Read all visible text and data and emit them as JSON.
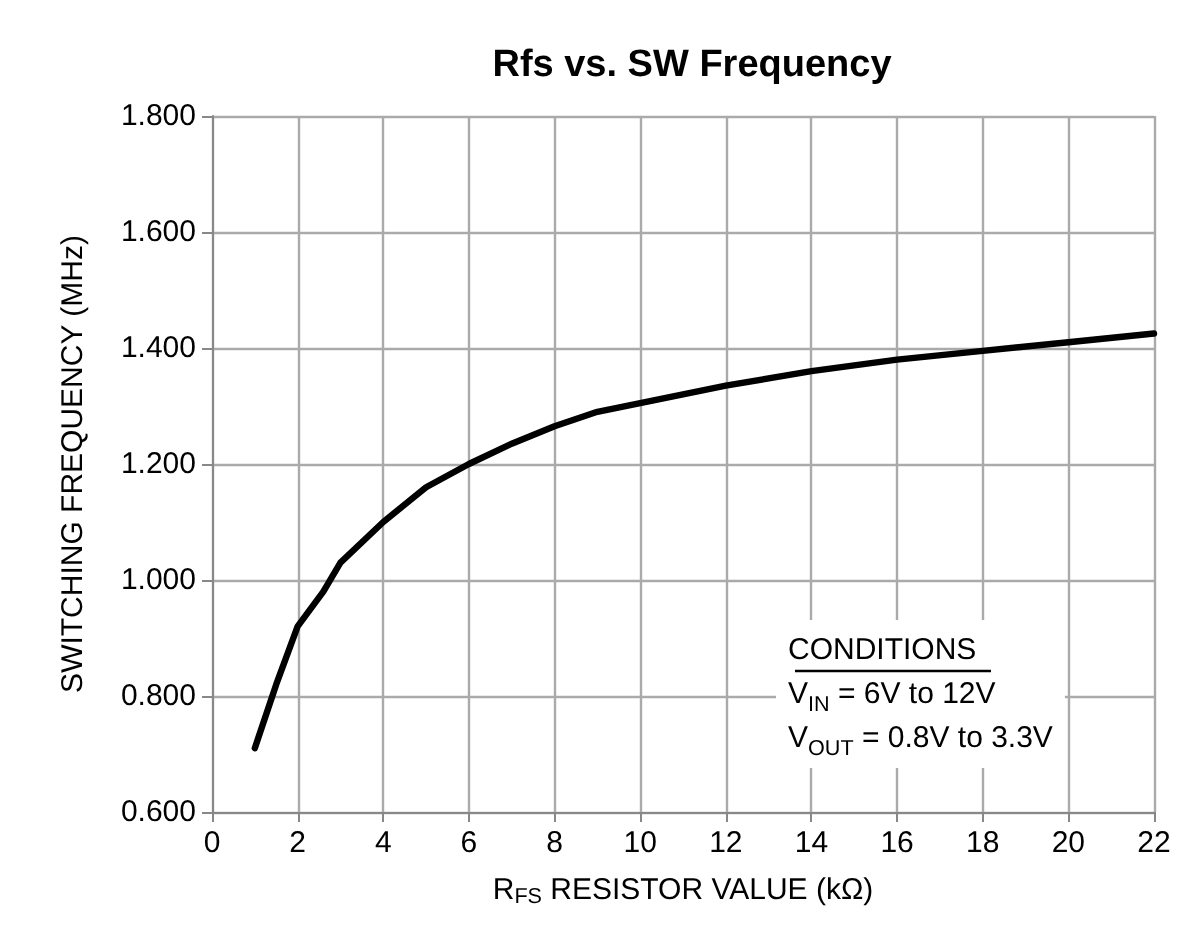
{
  "chart_data": {
    "type": "line",
    "title": "Rfs vs. SW Frequency",
    "xlabel": "R$_{FS}$ RESISTOR VALUE (kΩ)",
    "ylabel": "SWITCHING FREQUENCY (MHz)",
    "x": [
      1,
      1.5,
      2,
      2.6,
      3,
      4,
      5,
      6,
      7,
      8,
      9,
      10,
      12,
      14,
      16,
      18,
      20,
      22
    ],
    "series": [
      {
        "color": "#000000",
        "values": [
          0.71,
          0.82,
          0.92,
          0.98,
          1.03,
          1.1,
          1.16,
          1.2,
          1.235,
          1.265,
          1.29,
          1.305,
          1.335,
          1.36,
          1.38,
          1.395,
          1.41,
          1.425
        ]
      }
    ],
    "xlim": [
      0,
      22
    ],
    "xticks": [
      0,
      2,
      4,
      6,
      8,
      10,
      12,
      14,
      16,
      18,
      20,
      22
    ],
    "ylim": [
      0.6,
      1.8
    ],
    "yticks": [
      {
        "value": 0.6,
        "label": "0.600"
      },
      {
        "value": 0.8,
        "label": "0.800"
      },
      {
        "value": 1.0,
        "label": "1.000"
      },
      {
        "value": 1.2,
        "label": "1.200"
      },
      {
        "value": 1.4,
        "label": "1.400"
      },
      {
        "value": 1.6,
        "label": "1.600"
      },
      {
        "value": 1.8,
        "label": "1.800"
      }
    ],
    "grid": true,
    "marker": "none",
    "line_style": "solid",
    "annotations": [
      "CONDITIONS",
      "V$_{IN}$ = 6V to 12V",
      "V$_{OUT}$ = 0.8V to 3.3V"
    ]
  }
}
